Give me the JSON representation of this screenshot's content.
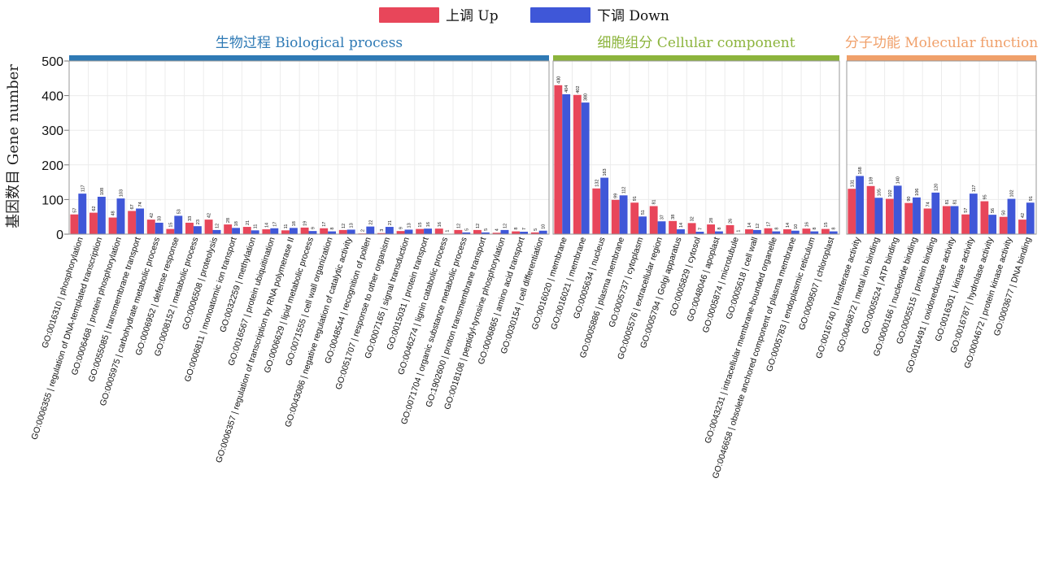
{
  "chart_data": {
    "type": "bar",
    "ylabel": "基因数目 Gene number",
    "ylim": [
      0,
      500
    ],
    "yticks": [
      "0",
      "100",
      "200",
      "300",
      "400",
      "500"
    ],
    "grid": true,
    "legend_position": "top-center",
    "series": [
      {
        "name": "上调 Up",
        "color": "#e8465a"
      },
      {
        "name": "下调 Down",
        "color": "#3f57d8"
      }
    ],
    "panels": [
      {
        "title": "生物过程 Biological process",
        "color": "#2f7ab5",
        "categories": [
          "GO:0016310 | phosphorylation",
          "GO:0006355 | regulation of DNA-templated transcription",
          "GO:0006468 | protein phosphorylation",
          "GO:0055085 | transmembrane transport",
          "GO:0005975 | carbohydrate metabolic process",
          "GO:0006952 | defense response",
          "GO:0008152 | metabolic process",
          "GO:0006508 | proteolysis",
          "GO:0006811 | monoatomic ion transport",
          "GO:0032259 | methylation",
          "GO:0016567 | protein ubiquitination",
          "GO:0006357 | regulation of transcription by RNA polymerase II",
          "GO:0006629 | lipid metabolic process",
          "GO:0071555 | cell wall organization",
          "GO:0043086 | negative regulation of catalytic activity",
          "GO:0048544 | recognition of pollen",
          "GO:0051707 | response to other organism",
          "GO:0007165 | signal transduction",
          "GO:0015031 | protein transport",
          "GO:0046274 | lignin catabolic process",
          "GO:0071704 | organic substance metabolic process",
          "GO:1902600 | proton transmembrane transport",
          "GO:0018108 | peptidyl-tyrosine phosphorylation",
          "GO:0006865 | amino acid transport",
          "GO:0030154 | cell differentiation"
        ],
        "up": [
          57,
          62,
          48,
          67,
          42,
          15,
          33,
          42,
          28,
          21,
          14,
          11,
          19,
          17,
          12,
          2,
          3,
          9,
          15,
          16,
          12,
          12,
          4,
          8,
          5
        ],
        "down": [
          117,
          108,
          103,
          74,
          33,
          53,
          23,
          12,
          18,
          11,
          17,
          18,
          9,
          8,
          13,
          22,
          21,
          13,
          16,
          1,
          5,
          5,
          12,
          7,
          10
        ]
      },
      {
        "title": "细胞组分 Cellular component",
        "color": "#8cb43c",
        "categories": [
          "GO:0016020 | membrane",
          "GO:0016021 | membrane",
          "GO:0005634 | nucleus",
          "GO:0005886 | plasma membrane",
          "GO:0005737 | cytoplasm",
          "GO:0005576 | extracellular region",
          "GO:0005794 | Golgi apparatus",
          "GO:0005829 | cytosol",
          "GO:0048046 | apoplast",
          "GO:0005874 | microtubule",
          "GO:0005618 | cell wall",
          "GO:0043231 | intracellular membrane-bounded organelle",
          "GO:0046658 | obsolete anchored component of plasma membrane",
          "GO:0005783 | endoplasmic reticulum",
          "GO:0009507 | chloroplast"
        ],
        "up": [
          430,
          402,
          132,
          99,
          91,
          81,
          38,
          32,
          28,
          26,
          14,
          17,
          14,
          16,
          15
        ],
        "down": [
          404,
          380,
          163,
          112,
          51,
          37,
          14,
          7,
          8,
          1,
          12,
          8,
          10,
          8,
          8
        ]
      },
      {
        "title": "分子功能 Molecular function",
        "color": "#f0a06a",
        "categories": [
          "GO:0016740 | transferase activity",
          "GO:0046872 | metal ion binding",
          "GO:0005524 | ATP binding",
          "GO:0000166 | nucleotide binding",
          "GO:0005515 | protein binding",
          "GO:0016491 | oxidoreductase activity",
          "GO:0016301 | kinase activity",
          "GO:0016787 | hydrolase activity",
          "GO:0004672 | protein kinase activity",
          "GO:0003677 | DNA binding"
        ],
        "up": [
          131,
          139,
          102,
          90,
          74,
          81,
          57,
          95,
          50,
          42
        ],
        "down": [
          168,
          105,
          140,
          106,
          120,
          81,
          117,
          56,
          102,
          91
        ]
      }
    ]
  }
}
